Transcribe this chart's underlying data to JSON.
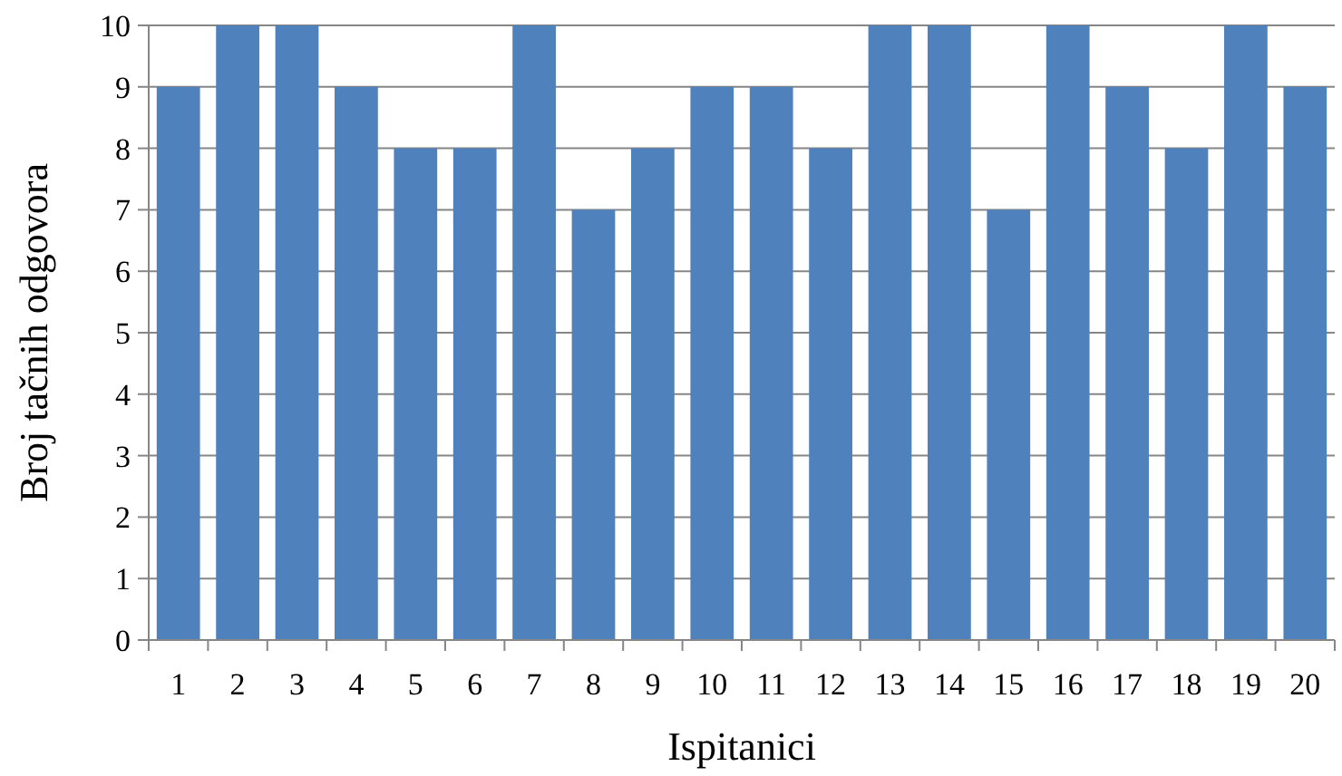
{
  "chart_data": {
    "type": "bar",
    "xlabel": "Ispitanici",
    "ylabel": "Broj tačnih odgovora",
    "categories": [
      "1",
      "2",
      "3",
      "4",
      "5",
      "6",
      "7",
      "8",
      "9",
      "10",
      "11",
      "12",
      "13",
      "14",
      "15",
      "16",
      "17",
      "18",
      "19",
      "20"
    ],
    "values": [
      9,
      10,
      10,
      9,
      8,
      8,
      10,
      7,
      8,
      9,
      9,
      8,
      10,
      10,
      7,
      10,
      9,
      8,
      10,
      9
    ],
    "color": "#4f81bd",
    "ylim": [
      0,
      10
    ],
    "yticks": [
      0,
      1,
      2,
      3,
      4,
      5,
      6,
      7,
      8,
      9,
      10
    ],
    "grid": "y"
  }
}
